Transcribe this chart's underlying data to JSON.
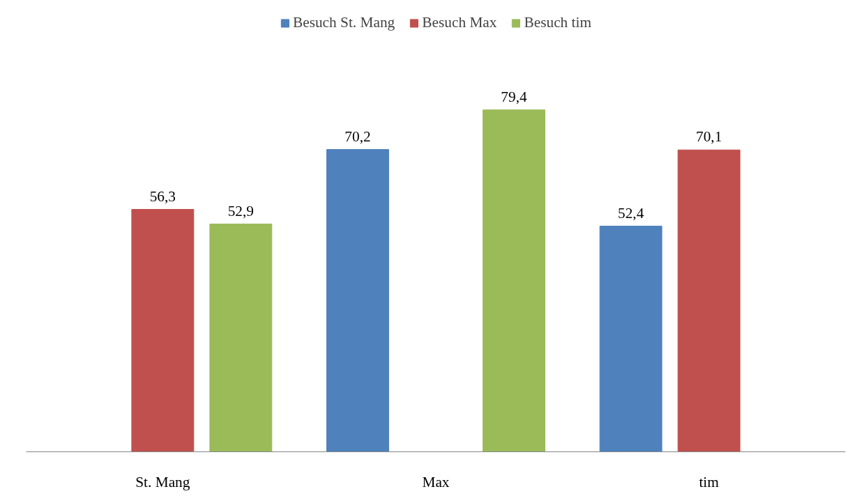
{
  "chart_data": {
    "type": "bar",
    "categories": [
      "St. Mang",
      "Max",
      "tim"
    ],
    "legend": "top",
    "grid": false,
    "series": [
      {
        "name": "Besuch St. Mang",
        "color": "#4f81bd",
        "values": [
          null,
          70.2,
          52.4
        ],
        "value_labels": [
          null,
          "70,2",
          "52,4"
        ]
      },
      {
        "name": "Besuch Max",
        "color": "#c0504d",
        "values": [
          56.3,
          null,
          70.1
        ],
        "value_labels": [
          "56,3",
          null,
          "70,1"
        ]
      },
      {
        "name": "Besuch tim",
        "color": "#9bbb59",
        "values": [
          52.9,
          79.4,
          null
        ],
        "value_labels": [
          "52,9",
          "79,4",
          null
        ]
      }
    ]
  }
}
